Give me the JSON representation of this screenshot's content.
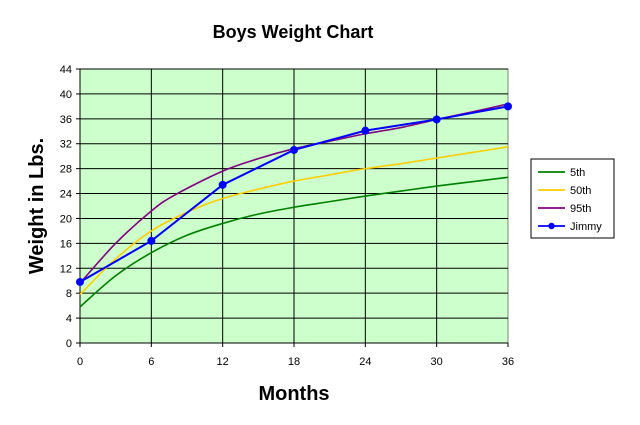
{
  "chart_data": {
    "type": "line",
    "title": "Boys Weight Chart",
    "xlabel": "Months",
    "ylabel": "Weight in Lbs.",
    "xlim": [
      0,
      36
    ],
    "ylim": [
      0,
      44
    ],
    "x_ticks": [
      0,
      6,
      12,
      18,
      24,
      30,
      36
    ],
    "y_ticks": [
      0,
      4,
      8,
      12,
      16,
      20,
      24,
      28,
      32,
      36,
      40,
      44
    ],
    "grid": true,
    "legend": "right",
    "plot_background": "#ccffcc",
    "series": [
      {
        "name": "5th",
        "color": "#008000",
        "markers": false,
        "x": [
          0,
          3,
          6,
          9,
          12,
          15,
          18,
          21,
          24,
          27,
          30,
          33,
          36
        ],
        "y": [
          5.8,
          10.8,
          14.5,
          17.3,
          19.2,
          20.7,
          21.8,
          22.7,
          23.6,
          24.4,
          25.2,
          25.9,
          26.6
        ]
      },
      {
        "name": "50th",
        "color": "#ffcc00",
        "markers": false,
        "x": [
          0,
          3,
          6,
          9,
          12,
          15,
          18,
          21,
          24,
          27,
          30,
          33,
          36
        ],
        "y": [
          7.8,
          13.5,
          18.0,
          21.0,
          23.2,
          24.7,
          26.0,
          27.0,
          28.0,
          28.8,
          29.7,
          30.6,
          31.5
        ]
      },
      {
        "name": "95th",
        "color": "#800080",
        "markers": false,
        "x": [
          0,
          3,
          6,
          8,
          12,
          15,
          18,
          21,
          24,
          27,
          30,
          33,
          36
        ],
        "y": [
          9.6,
          16.0,
          21.2,
          23.8,
          27.6,
          29.6,
          31.2,
          32.4,
          33.6,
          34.6,
          35.9,
          37.1,
          38.4
        ]
      },
      {
        "name": "Jimmy",
        "color": "#0000ff",
        "markers": true,
        "x": [
          0,
          6,
          12,
          18,
          24,
          30,
          36
        ],
        "y": [
          9.8,
          16.4,
          25.4,
          31.0,
          34.1,
          35.9,
          38.0
        ]
      }
    ]
  }
}
